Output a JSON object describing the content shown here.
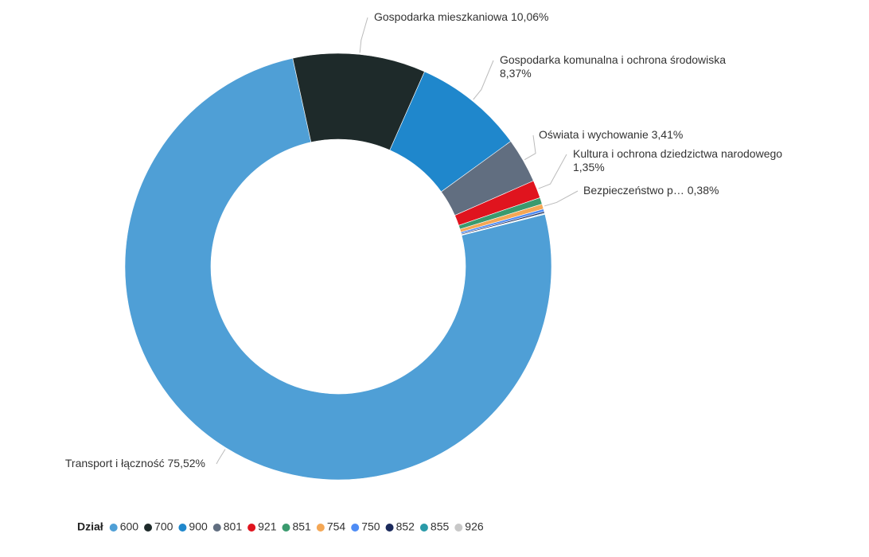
{
  "chart_data": {
    "type": "donut",
    "legend_title": "Dział",
    "categories": [
      "600",
      "700",
      "900",
      "801",
      "921",
      "851",
      "754",
      "750",
      "852",
      "855",
      "926"
    ],
    "labels": [
      "Transport i łączność",
      "Gospodarka mieszkaniowa",
      "Gospodarka komunalna i ochrona środowiska",
      "Oświata i wychowanie",
      "Kultura i ochrona dziedzictwa narodowego",
      null,
      "Bezpieczeństwo p…",
      null,
      null,
      null,
      null
    ],
    "values": [
      75.52,
      10.06,
      8.37,
      3.41,
      1.35,
      0.5,
      0.38,
      0.2,
      0.12,
      0.05,
      0.04
    ],
    "value_labels": [
      "75,52%",
      "10,06%",
      "8,37%",
      "3,41%",
      "1,35%",
      null,
      "0,38%",
      null,
      null,
      null,
      null
    ],
    "colors": [
      "#4f9fd6",
      "#1e2a2a",
      "#1f87cc",
      "#616e80",
      "#e0141e",
      "#3a9a6e",
      "#f4a755",
      "#4e8cf5",
      "#1b2a5c",
      "#2a9aa8",
      "#c8c8c8"
    ]
  }
}
